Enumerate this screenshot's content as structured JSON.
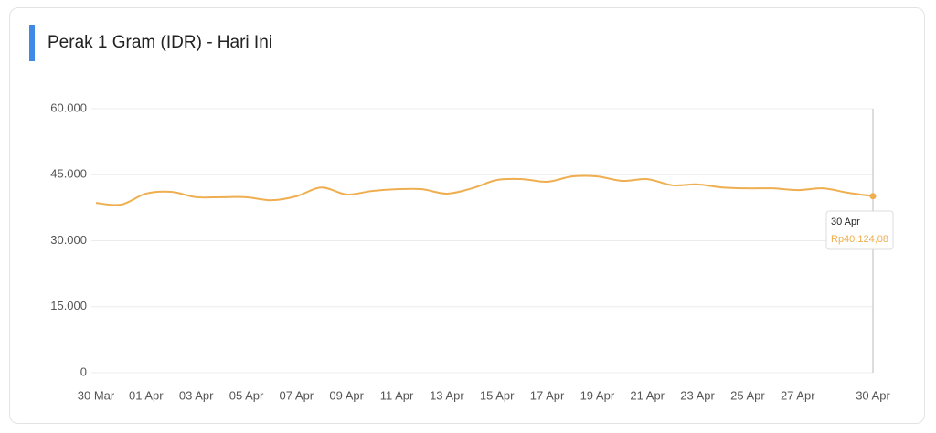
{
  "chart_data": {
    "type": "line",
    "title": "Perak 1 Gram (IDR) - Hari Ini",
    "categories": [
      "30 Mar",
      null,
      "01 Apr",
      null,
      "03 Apr",
      null,
      "05 Apr",
      null,
      "07 Apr",
      null,
      "09 Apr",
      null,
      "11 Apr",
      null,
      "13 Apr",
      null,
      "15 Apr",
      null,
      "17 Apr",
      null,
      "19 Apr",
      null,
      "21 Apr",
      null,
      "23 Apr",
      null,
      "25 Apr",
      null,
      "27 Apr",
      null,
      null,
      "30 Apr"
    ],
    "values": [
      38600,
      38200,
      40700,
      41100,
      39900,
      39900,
      39900,
      39200,
      40100,
      42100,
      40500,
      41300,
      41700,
      41700,
      40700,
      41900,
      43800,
      44000,
      43400,
      44600,
      44600,
      43600,
      44000,
      42600,
      42800,
      42100,
      41900,
      41900,
      41500,
      41900,
      40900,
      40124.08
    ],
    "value_labels": [
      null,
      null,
      null,
      null,
      null,
      null,
      null,
      null,
      null,
      null,
      null,
      null,
      null,
      null,
      null,
      null,
      null,
      null,
      null,
      null,
      null,
      null,
      null,
      null,
      null,
      null,
      null,
      null,
      null,
      null,
      null,
      "Rp40.124,08"
    ],
    "color": "#efae4f",
    "ylim": [
      0,
      60000
    ],
    "yticks": [
      0,
      {
        "value": 15000,
        "label": "15.000"
      },
      {
        "value": 30000,
        "label": "30.000"
      },
      {
        "value": 45000,
        "label": "45.000"
      },
      {
        "value": 60000,
        "label": "60.000"
      }
    ],
    "grid": true
  }
}
